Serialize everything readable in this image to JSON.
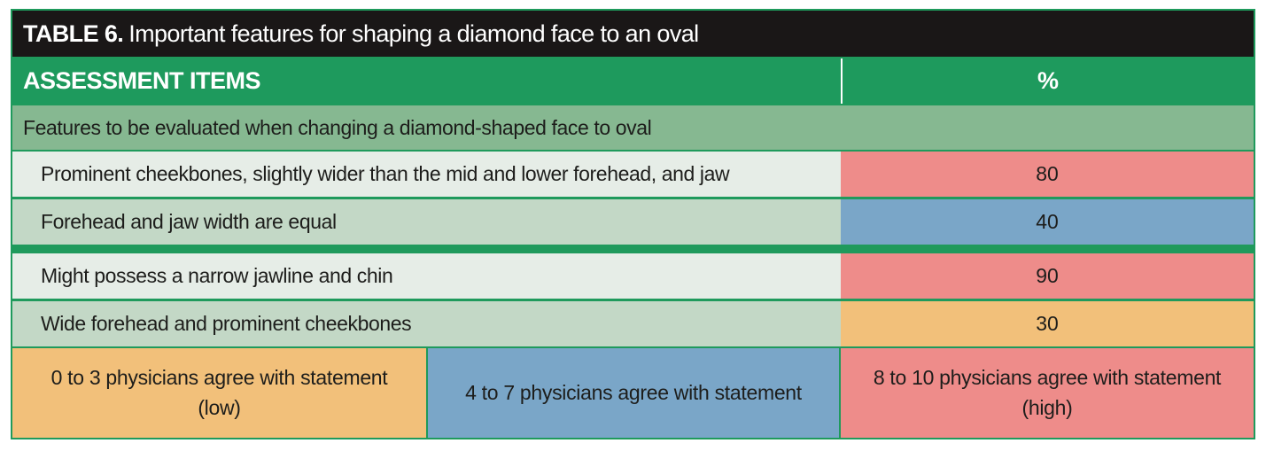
{
  "table": {
    "title_bold": "TABLE 6.",
    "title_rest": "Important features for shaping a diamond face to an oval",
    "header_items": "ASSESSMENT ITEMS",
    "header_percent": "%",
    "section_label": "Features to be evaluated when changing a diamond-shaped face to oval",
    "rows": [
      {
        "label": "Prominent cheekbones, slightly wider than the mid and lower forehead, and jaw",
        "value": "80",
        "level": "high",
        "color": "#ee8c8a"
      },
      {
        "label": "Forehead and jaw width are equal",
        "value": "40",
        "level": "mid",
        "color": "#7aa6c8"
      },
      {
        "label": "Might possess a narrow jawline and chin",
        "value": "90",
        "level": "high",
        "color": "#ee8c8a"
      },
      {
        "label": "Wide forehead and prominent cheekbones",
        "value": "30",
        "level": "low",
        "color": "#f2c07a"
      }
    ],
    "legend": {
      "low_line1": "0 to 3 physicians agree with statement",
      "low_line2": "(low)",
      "mid_line1": "4 to 7 physicians agree with statement",
      "high_line1": "8 to 10 physicians agree with statement",
      "high_line2": "(high)"
    }
  },
  "colors": {
    "title_bg": "#1a1717",
    "header_bg": "#1e9a5d",
    "section_bg": "#86b891",
    "low": "#f2c07a",
    "mid": "#7aa6c8",
    "high": "#ee8c8a"
  }
}
